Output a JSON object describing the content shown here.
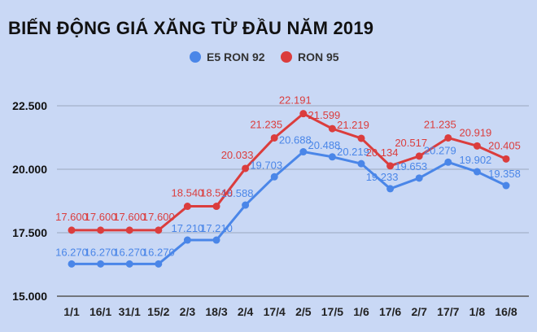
{
  "chart_data": {
    "type": "line",
    "title": "BIẾN ĐỘNG GIÁ XĂNG TỪ ĐẦU NĂM 2019",
    "categories": [
      "1/1",
      "16/1",
      "31/1",
      "15/2",
      "2/3",
      "18/3",
      "2/4",
      "17/4",
      "2/5",
      "17/5",
      "1/6",
      "17/6",
      "2/7",
      "17/7",
      "1/8",
      "16/8"
    ],
    "y_tick_labels": [
      "15.000",
      "17.500",
      "20.000",
      "22.500"
    ],
    "y_ticks": [
      15000,
      17500,
      20000,
      22500
    ],
    "ylim": [
      15000,
      23200
    ],
    "grid": true,
    "legend_position": "top-center",
    "series": [
      {
        "name": "E5 RON 92",
        "color": "#4a86e8",
        "values": [
          16270,
          16270,
          16270,
          16270,
          17210,
          17210,
          18588,
          19703,
          20688,
          20488,
          20219,
          19233,
          19653,
          20279,
          19902,
          19358
        ],
        "labels": [
          "16.270",
          "16.270",
          "16.270",
          "16.270",
          "17.210",
          "17.210",
          "18.588",
          "19.703",
          "20.688",
          "20.488",
          "20.219",
          "19.233",
          "19.653",
          "20.279",
          "19.902",
          "19.358"
        ]
      },
      {
        "name": "RON 95",
        "color": "#db3d3d",
        "values": [
          17600,
          17600,
          17600,
          17600,
          18540,
          18540,
          20033,
          21235,
          22191,
          21599,
          21219,
          20134,
          20517,
          21235,
          20919,
          20405
        ],
        "labels": [
          "17.600",
          "17.600",
          "17.600",
          "17.600",
          "18.540",
          "18.540",
          "20.033",
          "21.235",
          "22.191",
          "21.599",
          "21.219",
          "20.134",
          "20.517",
          "21.235",
          "20.919",
          "20.405"
        ]
      }
    ]
  }
}
